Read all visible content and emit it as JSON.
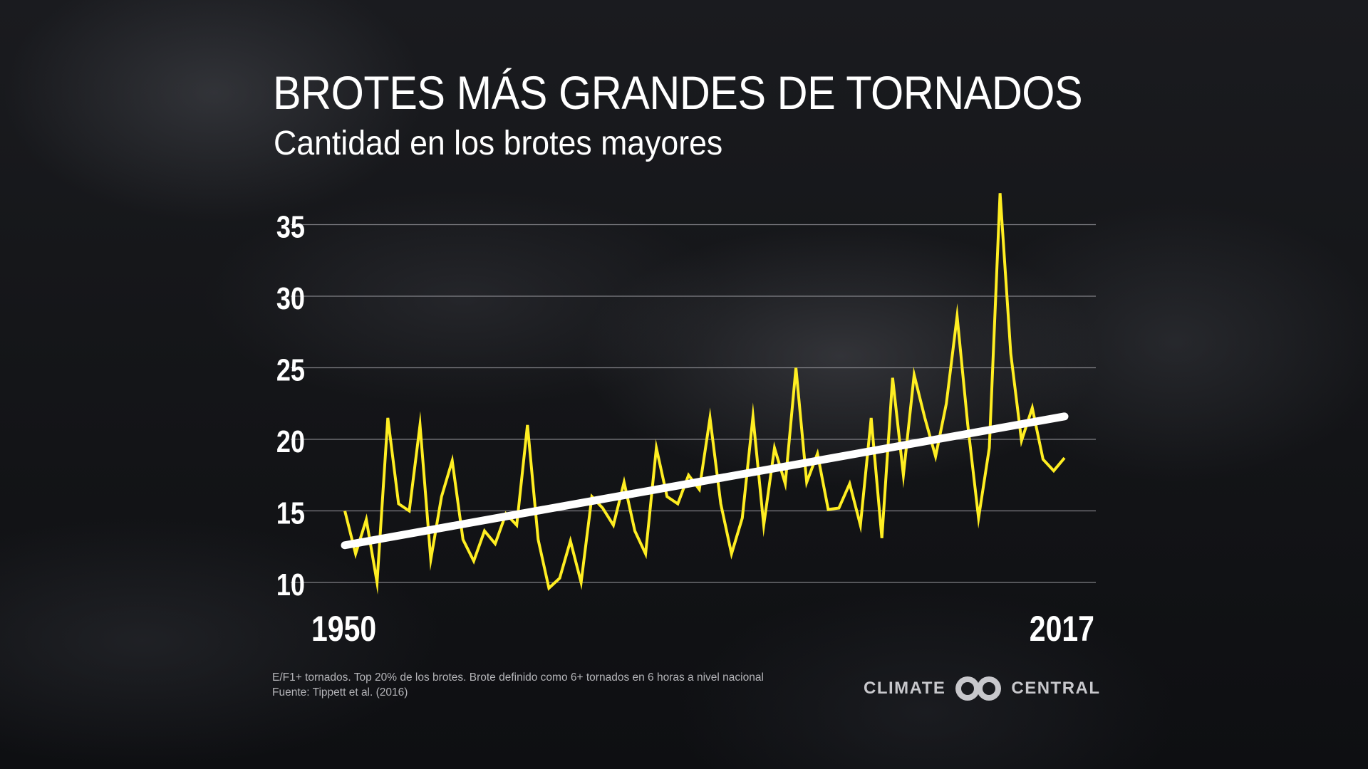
{
  "title": "BROTES MÁS GRANDES DE TORNADOS",
  "subtitle": "Cantidad en los brotes mayores",
  "footnote": {
    "line1": "E/F1+ tornados. Top 20% de los brotes. Brote definido como 6+ tornados en 6 horas a nivel nacional",
    "line2": "Fuente: Tippett et al. (2016)"
  },
  "brand": {
    "left": "CLIMATE",
    "right": "CENTRAL",
    "icon": "climate-central-logo-icon"
  },
  "colors": {
    "series": "#ffee22",
    "trend": "#ffffff",
    "grid": "#9a9aa0",
    "text": "#ffffff"
  },
  "chart_data": {
    "type": "line",
    "title": "BROTES MÁS GRANDES DE TORNADOS",
    "subtitle": "Cantidad en los brotes mayores",
    "xlabel": "",
    "ylabel": "",
    "x_tick_labels": [
      "1950",
      "2017"
    ],
    "y_ticks": [
      10,
      15,
      20,
      25,
      30,
      35
    ],
    "xlim": [
      1950,
      2017
    ],
    "ylim": [
      10,
      37
    ],
    "grid": true,
    "legend": "none",
    "x": [
      1950,
      1951,
      1952,
      1953,
      1954,
      1955,
      1956,
      1957,
      1958,
      1959,
      1960,
      1961,
      1962,
      1963,
      1964,
      1965,
      1966,
      1967,
      1968,
      1969,
      1970,
      1971,
      1972,
      1973,
      1974,
      1975,
      1976,
      1977,
      1978,
      1979,
      1980,
      1981,
      1982,
      1983,
      1984,
      1985,
      1986,
      1987,
      1988,
      1989,
      1990,
      1991,
      1992,
      1993,
      1994,
      1995,
      1996,
      1997,
      1998,
      1999,
      2000,
      2001,
      2002,
      2003,
      2004,
      2005,
      2006,
      2007,
      2008,
      2009,
      2010,
      2011,
      2012,
      2013,
      2014,
      2015,
      2016,
      2017
    ],
    "series": [
      {
        "values": [
          15.0,
          12.0,
          14.4,
          10.0,
          21.5,
          15.5,
          15.0,
          21.0,
          11.6,
          16.0,
          18.5,
          13.0,
          11.5,
          13.6,
          12.7,
          14.8,
          14.0,
          21.0,
          13.0,
          9.6,
          10.3,
          12.9,
          10.0,
          16.0,
          15.2,
          14.0,
          17.0,
          13.6,
          12.0,
          19.4,
          16.0,
          15.5,
          17.5,
          16.5,
          21.5,
          15.5,
          12.0,
          14.5,
          21.6,
          14.0,
          19.4,
          16.9,
          25.0,
          17.0,
          19.0,
          15.1,
          15.2,
          16.9,
          14.0,
          21.5,
          13.1,
          24.3,
          17.5,
          24.5,
          21.5,
          18.8,
          22.5,
          28.6,
          21.0,
          14.5,
          19.4,
          37.2,
          26.0,
          19.9,
          22.2,
          18.6,
          17.8,
          18.7
        ]
      },
      {
        "values_trend": [
          12.6,
          21.6
        ],
        "trend_x": [
          1950,
          2017
        ]
      }
    ]
  }
}
